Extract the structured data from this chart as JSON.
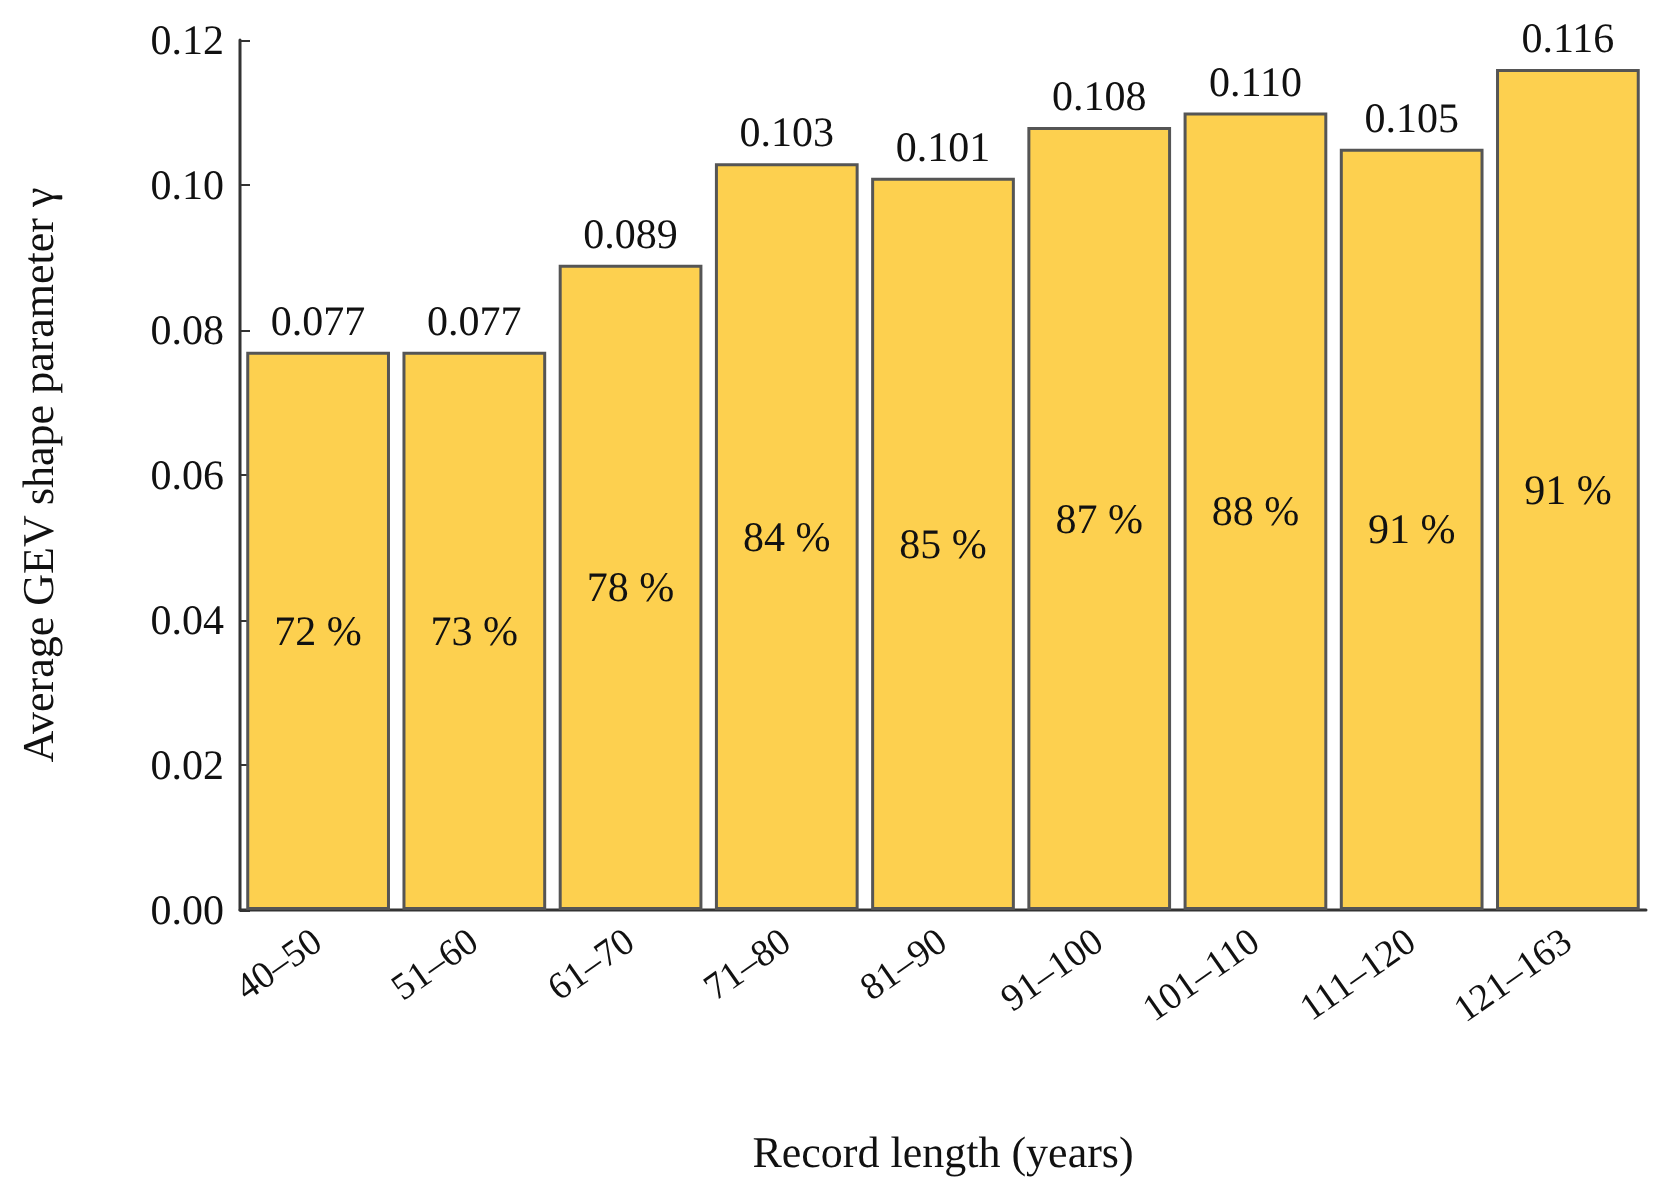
{
  "chart_data": {
    "type": "bar",
    "xlabel": "Record length (years)",
    "ylabel": "Average GEV shape parameter γ",
    "categories": [
      "40–50",
      "51–60",
      "61–70",
      "71–80",
      "81–90",
      "91–100",
      "101–110",
      "111–120",
      "121–163"
    ],
    "values": [
      0.077,
      0.077,
      0.089,
      0.103,
      0.101,
      0.108,
      0.11,
      0.105,
      0.116
    ],
    "value_labels": [
      "0.077",
      "0.077",
      "0.089",
      "0.103",
      "0.101",
      "0.108",
      "0.110",
      "0.105",
      "0.116"
    ],
    "color": "#fdd04f",
    "ylim": [
      0,
      0.12
    ],
    "yticks": [
      {
        "value": 0,
        "label": "0.00"
      },
      0.02,
      0.04,
      0.06,
      0.08,
      {
        "value": 0.1,
        "label": "0.10"
      },
      0.12
    ],
    "grid": false,
    "annotations": [
      "72 %",
      "73 %",
      "78 %",
      "84 %",
      "85 %",
      "87 %",
      "88 %",
      "91 %",
      "91 %"
    ]
  }
}
